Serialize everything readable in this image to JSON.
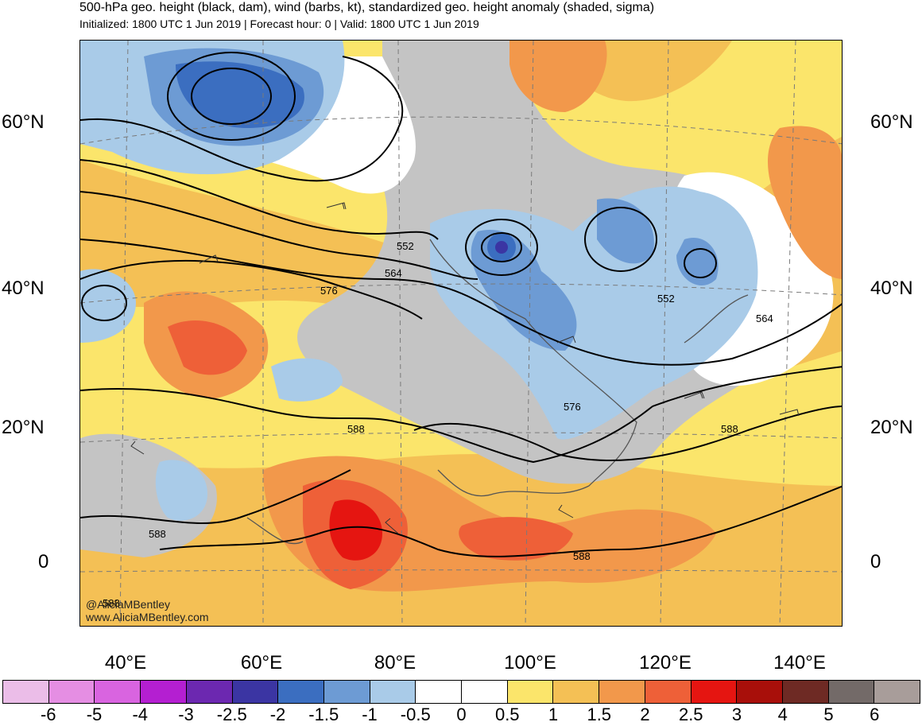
{
  "header": {
    "title": "500-hPa geo. height (black, dam), wind (barbs, kt), standardized geo. height anomaly (shaded, sigma)",
    "subtitle": "Initialized: 1800 UTC 1 Jun 2019 | Forecast hour: 0 | Valid: 1800 UTC 1 Jun 2019"
  },
  "axes": {
    "lat_labels": [
      "60°N",
      "40°N",
      "20°N",
      "0"
    ],
    "lon_labels": [
      "40°E",
      "60°E",
      "80°E",
      "100°E",
      "120°E",
      "140°E"
    ]
  },
  "contours": {
    "labels": [
      "552",
      "564",
      "576",
      "552",
      "564",
      "576",
      "588",
      "588",
      "588",
      "588",
      "588"
    ]
  },
  "credit": {
    "handle": "@AliciaMBentley",
    "website": "www.AliciaMBentley.com"
  },
  "colorbar": {
    "colors": [
      "#ebbde8",
      "#e58ee3",
      "#d964e0",
      "#b41fd1",
      "#6c28b0",
      "#3b35a3",
      "#3b6ec0",
      "#6d9bd4",
      "#a9cbe8",
      "#ffffff",
      "#ffffff",
      "#fbe56b",
      "#f4c055",
      "#f2984b",
      "#ee6038",
      "#e51511",
      "#a80f0a",
      "#6e2a24",
      "#736a68",
      "#a89d9a"
    ],
    "labels": [
      "-6",
      "-5",
      "-4",
      "-3",
      "-2.5",
      "-2",
      "-1.5",
      "-1",
      "-0.5",
      "0",
      "0.5",
      "1",
      "1.5",
      "2",
      "2.5",
      "3",
      "4",
      "5",
      "6"
    ]
  },
  "shading": {
    "gray": "#c4c4c4",
    "white": "#ffffff",
    "lightblue": "#a9cbe8",
    "blue": "#6d9bd4",
    "darkblue": "#3b6ec0",
    "navy": "#3b35a3",
    "yellow": "#fbe56b",
    "lightorange": "#f4c055",
    "orange": "#f2984b",
    "redorange": "#ee6038",
    "red": "#e51511"
  }
}
